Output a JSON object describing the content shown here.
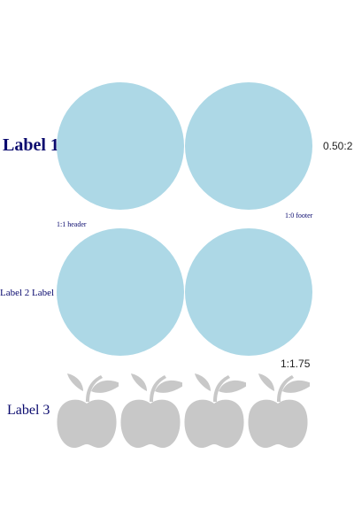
{
  "rows": [
    {
      "label": "Label 1",
      "shape": "circle",
      "count": 2,
      "ratio_text": "0.50:2"
    },
    {
      "label": "Label 2 Label 2",
      "shape": "circle",
      "count": 2,
      "ratio_text": "1:1.75"
    },
    {
      "label": "Label 3",
      "shape": "apple-icon",
      "count": 4
    }
  ],
  "notes": {
    "header": "1:1 header",
    "footer": "1:0 footer"
  },
  "colors": {
    "circle_fill": "#add8e6",
    "apple_fill": "#c8c8c8",
    "label_text": "#0a0a6e",
    "ratio_text": "#222222"
  }
}
